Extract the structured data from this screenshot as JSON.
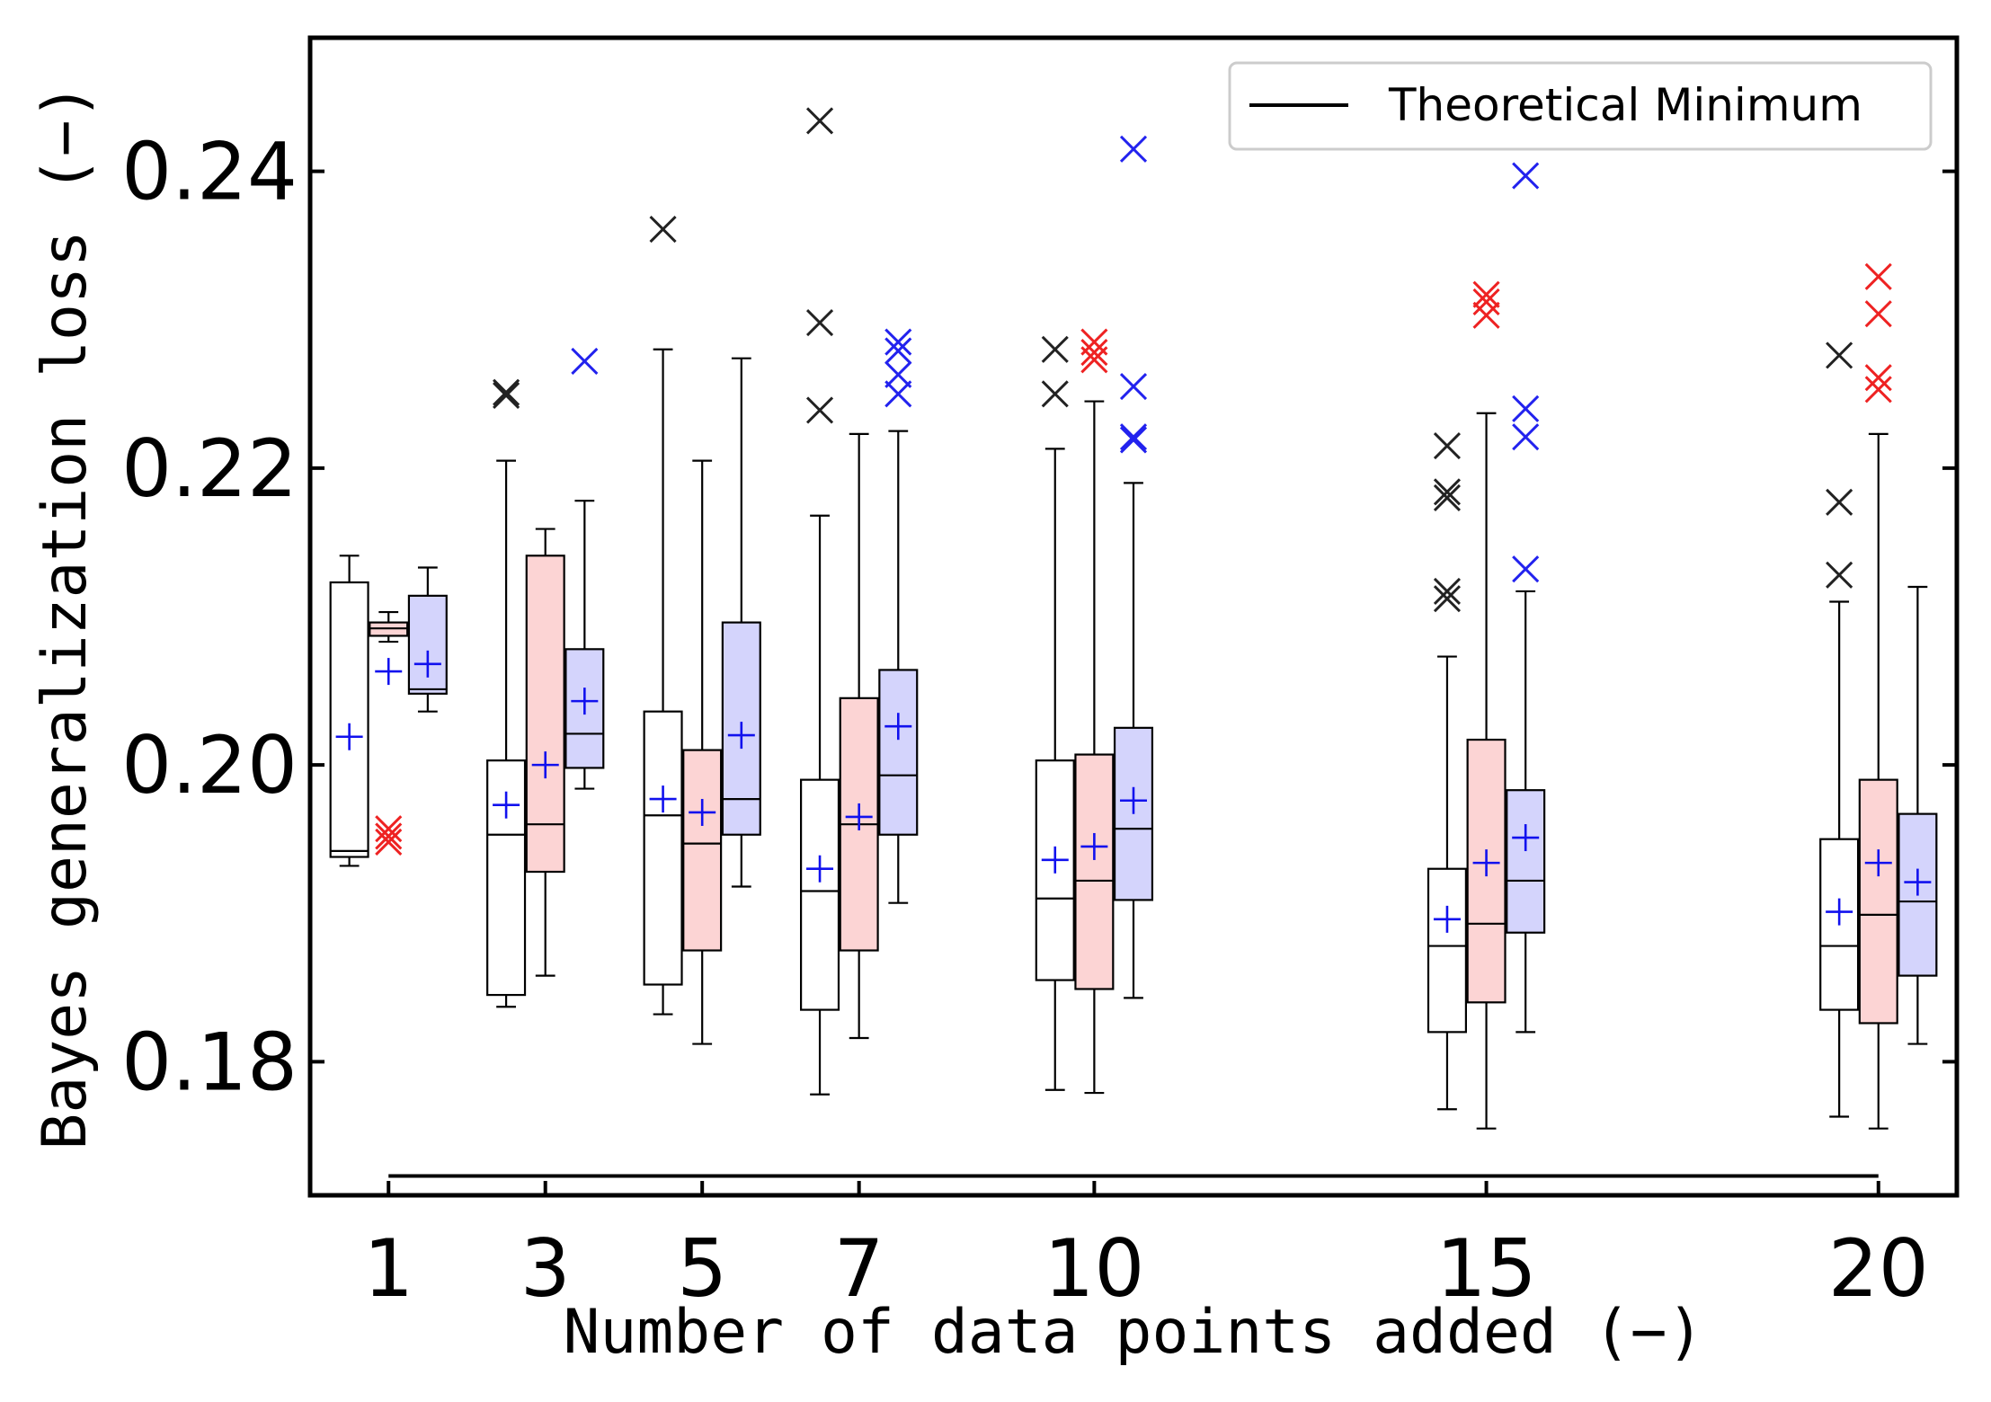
{
  "chart_data": {
    "type": "box",
    "xlabel": "Number of data points added (−)",
    "ylabel": "Bayes generalization loss (−)",
    "categories": [
      "1",
      "3",
      "5",
      "7",
      "10",
      "15",
      "20"
    ],
    "x_values": [
      1,
      3,
      5,
      7,
      10,
      15,
      20
    ],
    "xlim": [
      0,
      21
    ],
    "ylim": [
      0.171,
      0.249
    ],
    "yticks": [
      0.18,
      0.2,
      0.22,
      0.24
    ],
    "ytick_labels": [
      "0.18",
      "0.20",
      "0.22",
      "0.24"
    ],
    "legend": {
      "position": "top-right",
      "label": "Theoretical Minimum"
    },
    "theoretical_minimum": {
      "value": 0.1723,
      "x_from": 1,
      "x_to": 20
    },
    "mean_marker_color": "#1111ee",
    "series": [
      {
        "name": "white",
        "fill": "#ffffff",
        "outlier_color": "#222222",
        "boxes": [
          {
            "x": 1,
            "whislo": 0.1932,
            "q1": 0.1938,
            "med": 0.1942,
            "q3": 0.2123,
            "whishi": 0.2141,
            "mean": 0.2019,
            "fliers": []
          },
          {
            "x": 3,
            "whislo": 0.1837,
            "q1": 0.1845,
            "med": 0.1953,
            "q3": 0.2003,
            "whishi": 0.2205,
            "mean": 0.1973,
            "fliers": [
              0.2251,
              0.2249
            ]
          },
          {
            "x": 5,
            "whislo": 0.1832,
            "q1": 0.1852,
            "med": 0.1966,
            "q3": 0.2036,
            "whishi": 0.228,
            "mean": 0.1977,
            "fliers": [
              0.2361
            ]
          },
          {
            "x": 7,
            "whislo": 0.1778,
            "q1": 0.1835,
            "med": 0.1915,
            "q3": 0.199,
            "whishi": 0.2168,
            "mean": 0.193,
            "fliers": [
              0.2434,
              0.2298,
              0.2239
            ]
          },
          {
            "x": 10,
            "whislo": 0.1781,
            "q1": 0.1855,
            "med": 0.191,
            "q3": 0.2003,
            "whishi": 0.2213,
            "mean": 0.1936,
            "fliers": [
              0.228,
              0.225
            ]
          },
          {
            "x": 15,
            "whislo": 0.1768,
            "q1": 0.182,
            "med": 0.1878,
            "q3": 0.193,
            "whishi": 0.2073,
            "mean": 0.1896,
            "fliers": [
              0.2215,
              0.2184,
              0.218,
              0.2117,
              0.2112
            ]
          },
          {
            "x": 20,
            "whislo": 0.1763,
            "q1": 0.1835,
            "med": 0.1878,
            "q3": 0.195,
            "whishi": 0.211,
            "mean": 0.1901,
            "fliers": [
              0.2276,
              0.2177,
              0.2128
            ]
          }
        ]
      },
      {
        "name": "red",
        "fill": "#fcd4d4",
        "outlier_color": "#ee2222",
        "boxes": [
          {
            "x": 1,
            "whislo": 0.2083,
            "q1": 0.2087,
            "med": 0.2092,
            "q3": 0.2096,
            "whishi": 0.2103,
            "mean": 0.2063,
            "fliers": [
              0.1957,
              0.1952,
              0.1948
            ]
          },
          {
            "x": 3,
            "whislo": 0.1858,
            "q1": 0.1928,
            "med": 0.196,
            "q3": 0.2141,
            "whishi": 0.2159,
            "mean": 0.2,
            "fliers": []
          },
          {
            "x": 5,
            "whislo": 0.1812,
            "q1": 0.1875,
            "med": 0.1947,
            "q3": 0.201,
            "whishi": 0.2205,
            "mean": 0.1968,
            "fliers": []
          },
          {
            "x": 7,
            "whislo": 0.1816,
            "q1": 0.1875,
            "med": 0.196,
            "q3": 0.2045,
            "whishi": 0.2223,
            "mean": 0.1965,
            "fliers": []
          },
          {
            "x": 10,
            "whislo": 0.1779,
            "q1": 0.1849,
            "med": 0.1922,
            "q3": 0.2007,
            "whishi": 0.2245,
            "mean": 0.1945,
            "fliers": [
              0.2285,
              0.2278,
              0.2273
            ]
          },
          {
            "x": 15,
            "whislo": 0.1755,
            "q1": 0.184,
            "med": 0.1893,
            "q3": 0.2017,
            "whishi": 0.2237,
            "mean": 0.1934,
            "fliers": [
              0.2317,
              0.2312,
              0.2303
            ]
          },
          {
            "x": 20,
            "whislo": 0.1755,
            "q1": 0.1826,
            "med": 0.1899,
            "q3": 0.199,
            "whishi": 0.2223,
            "mean": 0.1934,
            "fliers": [
              0.2329,
              0.2304,
              0.2261,
              0.2253
            ]
          }
        ]
      },
      {
        "name": "blue",
        "fill": "#d4d4fc",
        "outlier_color": "#2222ee",
        "boxes": [
          {
            "x": 1,
            "whislo": 0.2036,
            "q1": 0.2048,
            "med": 0.2051,
            "q3": 0.2114,
            "whishi": 0.2133,
            "mean": 0.2068,
            "fliers": []
          },
          {
            "x": 3,
            "whislo": 0.1984,
            "q1": 0.1998,
            "med": 0.2021,
            "q3": 0.2078,
            "whishi": 0.2178,
            "mean": 0.2043,
            "fliers": [
              0.2272
            ]
          },
          {
            "x": 5,
            "whislo": 0.1918,
            "q1": 0.1953,
            "med": 0.1977,
            "q3": 0.2096,
            "whishi": 0.2274,
            "mean": 0.202,
            "fliers": []
          },
          {
            "x": 7,
            "whislo": 0.1907,
            "q1": 0.1953,
            "med": 0.1993,
            "q3": 0.2064,
            "whishi": 0.2225,
            "mean": 0.2026,
            "fliers": [
              0.2285,
              0.2279,
              0.2263,
              0.225
            ]
          },
          {
            "x": 10,
            "whislo": 0.1843,
            "q1": 0.1909,
            "med": 0.1957,
            "q3": 0.2025,
            "whishi": 0.219,
            "mean": 0.1976,
            "fliers": [
              0.2415,
              0.2255,
              0.2221,
              0.2219
            ]
          },
          {
            "x": 15,
            "whislo": 0.182,
            "q1": 0.1887,
            "med": 0.1922,
            "q3": 0.1983,
            "whishi": 0.2117,
            "mean": 0.1951,
            "fliers": [
              0.2397,
              0.224,
              0.2221,
              0.2132
            ]
          },
          {
            "x": 20,
            "whislo": 0.1812,
            "q1": 0.1858,
            "med": 0.1908,
            "q3": 0.1967,
            "whishi": 0.212,
            "mean": 0.1921,
            "fliers": []
          }
        ]
      }
    ]
  }
}
